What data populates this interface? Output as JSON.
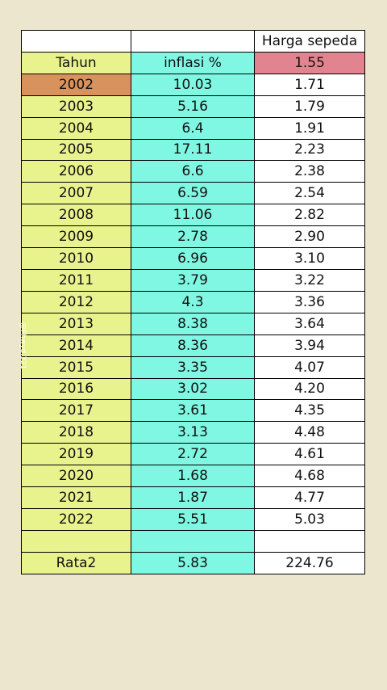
{
  "header": {
    "year_label": "Tahun",
    "inflation_label": "inflasi  %",
    "price_label": "Harga sepeda",
    "base_price": "1.55"
  },
  "rows": [
    {
      "year": "2002",
      "inflation": "10.03",
      "price": "1.71"
    },
    {
      "year": "2003",
      "inflation": "5.16",
      "price": "1.79"
    },
    {
      "year": "2004",
      "inflation": "6.4",
      "price": "1.91"
    },
    {
      "year": "2005",
      "inflation": "17.11",
      "price": "2.23"
    },
    {
      "year": "2006",
      "inflation": "6.6",
      "price": "2.38"
    },
    {
      "year": "2007",
      "inflation": "6.59",
      "price": "2.54"
    },
    {
      "year": "2008",
      "inflation": "11.06",
      "price": "2.82"
    },
    {
      "year": "2009",
      "inflation": "2.78",
      "price": "2.90"
    },
    {
      "year": "2010",
      "inflation": "6.96",
      "price": "3.10"
    },
    {
      "year": "2011",
      "inflation": "3.79",
      "price": "3.22"
    },
    {
      "year": "2012",
      "inflation": "4.3",
      "price": "3.36"
    },
    {
      "year": "2013",
      "inflation": "8.38",
      "price": "3.64"
    },
    {
      "year": "2014",
      "inflation": "8.36",
      "price": "3.94"
    },
    {
      "year": "2015",
      "inflation": "3.35",
      "price": "4.07"
    },
    {
      "year": "2016",
      "inflation": "3.02",
      "price": "4.20"
    },
    {
      "year": "2017",
      "inflation": "3.61",
      "price": "4.35"
    },
    {
      "year": "2018",
      "inflation": "3.13",
      "price": "4.48"
    },
    {
      "year": "2019",
      "inflation": "2.72",
      "price": "4.61"
    },
    {
      "year": "2020",
      "inflation": "1.68",
      "price": "4.68"
    },
    {
      "year": "2021",
      "inflation": "1.87",
      "price": "4.77"
    },
    {
      "year": "2022",
      "inflation": "5.51",
      "price": "5.03"
    }
  ],
  "summary": {
    "label": "Rata2",
    "inflation": "5.83",
    "price": "224.76"
  },
  "watermark": "@Fhwyd.321",
  "colors": {
    "background": "#ede6cf",
    "year_column": "#e9f38e",
    "inflation_column": "#7ff7e2",
    "price_column": "#ffffff",
    "base_price_highlight": "#e2848f",
    "first_year_highlight": "#d9925c"
  }
}
